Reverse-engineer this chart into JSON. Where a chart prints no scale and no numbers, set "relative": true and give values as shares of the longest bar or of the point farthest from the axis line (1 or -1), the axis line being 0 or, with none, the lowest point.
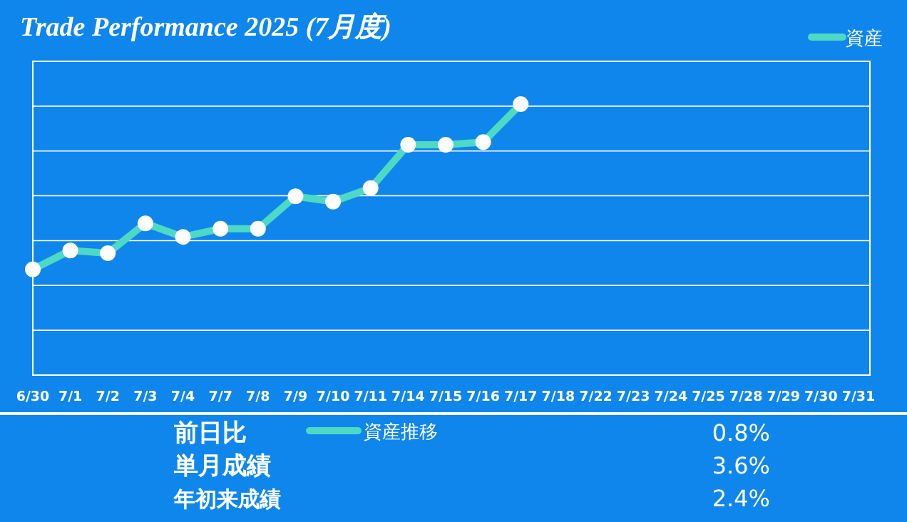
{
  "chart_data": {
    "type": "line",
    "title": "Trade Performance 2025 (7月度)",
    "relative": true,
    "grid": true,
    "legend": "top right",
    "marker": "circle",
    "categories": [
      "6/30",
      "7/1",
      "7/2",
      "7/3",
      "7/4",
      "7/7",
      "7/8",
      "7/9",
      "7/10",
      "7/11",
      "7/14",
      "7/15",
      "7/16",
      "7/17",
      "7/18",
      "7/22",
      "7/23",
      "7/24",
      "7/25",
      "7/28",
      "7/29",
      "7/30",
      "7/31"
    ],
    "series": [
      {
        "name": "資産",
        "color": "#4dd9c4",
        "values": [
          0.39,
          0.46,
          0.45,
          0.56,
          0.51,
          0.54,
          0.54,
          0.66,
          0.64,
          0.69,
          0.85,
          0.85,
          0.86,
          1,
          null,
          null,
          null,
          null,
          null,
          null,
          null,
          null,
          null
        ]
      }
    ],
    "annotations": [
      "前日比",
      "0.8%",
      "単月成績",
      "3.6%",
      "年初来成績",
      "2.4%",
      "資産推移"
    ]
  }
}
